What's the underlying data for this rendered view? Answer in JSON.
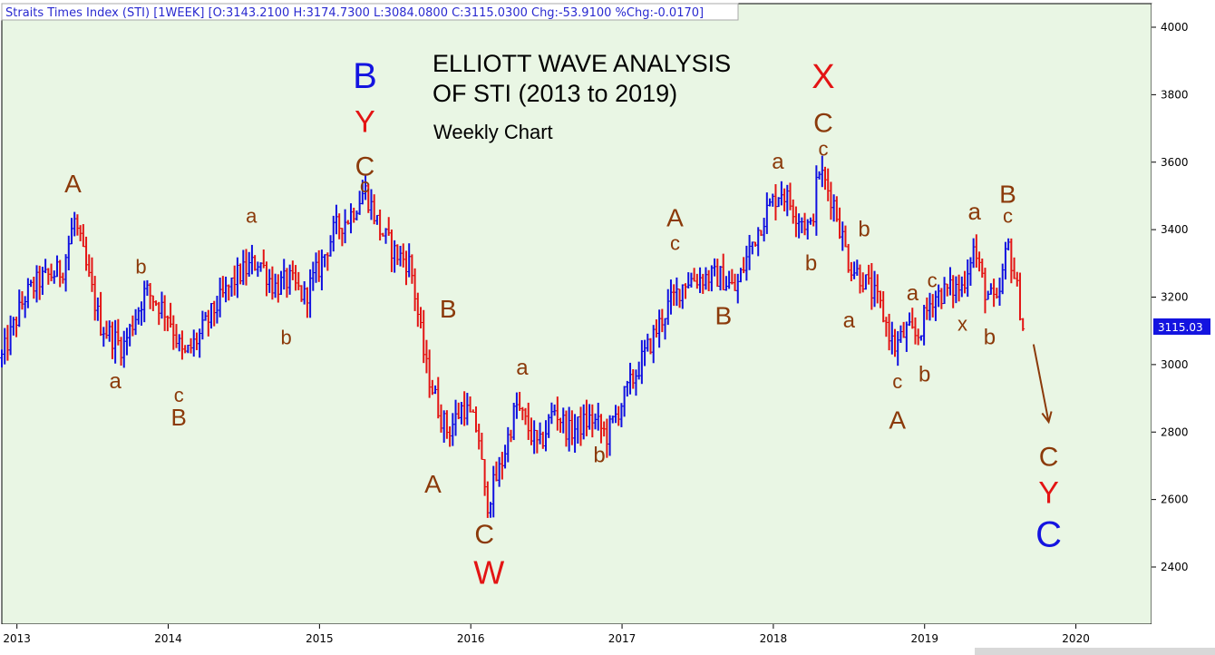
{
  "header": {
    "text": "Straits Times Index (STI) [1WEEK] [O:3143.2100 H:3174.7300 L:3084.0800 C:3115.0300 Chg:-53.9100 %Chg:-0.0170]"
  },
  "title_line1": "ELLIOTT WAVE ANALYSIS",
  "title_line2": "OF STI (2013 to 2019)",
  "subtitle": "Weekly Chart",
  "last_price": "3115.03",
  "colors": {
    "background": "#e9f6e4",
    "up_bar": "#1010e0",
    "down_bar": "#e31414",
    "label_brown": "#8b3a0a",
    "label_red": "#e31414",
    "label_blue": "#1414e0",
    "price_box": "#1414e0"
  },
  "chart_data": {
    "type": "ohlc",
    "interval": "1WEEK",
    "ylim": [
      2250,
      4080
    ],
    "xlim": [
      2012.9,
      2020.5
    ],
    "y_ticks": [
      2400,
      2600,
      2800,
      3000,
      3200,
      3400,
      3600,
      3800,
      4000
    ],
    "x_ticks": [
      2013,
      2014,
      2015,
      2016,
      2017,
      2018,
      2019,
      2020
    ],
    "grid": false,
    "legend": "none",
    "price_path": [
      [
        2012.9,
        3020
      ],
      [
        2013.05,
        3200
      ],
      [
        2013.15,
        3250
      ],
      [
        2013.3,
        3280
      ],
      [
        2013.38,
        3430
      ],
      [
        2013.45,
        3300
      ],
      [
        2013.55,
        3120
      ],
      [
        2013.7,
        3050
      ],
      [
        2013.85,
        3220
      ],
      [
        2014.0,
        3150
      ],
      [
        2014.1,
        3020
      ],
      [
        2014.2,
        3080
      ],
      [
        2014.3,
        3160
      ],
      [
        2014.45,
        3260
      ],
      [
        2014.6,
        3310
      ],
      [
        2014.7,
        3230
      ],
      [
        2014.8,
        3250
      ],
      [
        2014.9,
        3200
      ],
      [
        2015.0,
        3290
      ],
      [
        2015.1,
        3400
      ],
      [
        2015.2,
        3440
      ],
      [
        2015.3,
        3520
      ],
      [
        2015.4,
        3400
      ],
      [
        2015.5,
        3330
      ],
      [
        2015.6,
        3300
      ],
      [
        2015.7,
        3000
      ],
      [
        2015.8,
        2850
      ],
      [
        2015.85,
        2800
      ],
      [
        2015.95,
        2880
      ],
      [
        2016.05,
        2800
      ],
      [
        2016.1,
        2580
      ],
      [
        2016.2,
        2700
      ],
      [
        2016.3,
        2880
      ],
      [
        2016.45,
        2750
      ],
      [
        2016.55,
        2870
      ],
      [
        2016.65,
        2800
      ],
      [
        2016.8,
        2840
      ],
      [
        2016.9,
        2790
      ],
      [
        2017.0,
        2890
      ],
      [
        2017.15,
        3030
      ],
      [
        2017.3,
        3170
      ],
      [
        2017.42,
        3250
      ],
      [
        2017.55,
        3260
      ],
      [
        2017.65,
        3260
      ],
      [
        2017.75,
        3220
      ],
      [
        2017.85,
        3350
      ],
      [
        2017.95,
        3450
      ],
      [
        2018.05,
        3520
      ],
      [
        2018.15,
        3450
      ],
      [
        2018.25,
        3400
      ],
      [
        2018.3,
        3580
      ],
      [
        2018.4,
        3480
      ],
      [
        2018.5,
        3300
      ],
      [
        2018.6,
        3250
      ],
      [
        2018.7,
        3180
      ],
      [
        2018.8,
        3050
      ],
      [
        2018.88,
        3100
      ],
      [
        2018.95,
        3080
      ],
      [
        2019.05,
        3200
      ],
      [
        2019.15,
        3220
      ],
      [
        2019.25,
        3230
      ],
      [
        2019.32,
        3350
      ],
      [
        2019.4,
        3220
      ],
      [
        2019.48,
        3170
      ],
      [
        2019.55,
        3360
      ],
      [
        2019.62,
        3200
      ],
      [
        2019.65,
        3115
      ]
    ],
    "last": {
      "open": 3143.21,
      "high": 3174.73,
      "low": 3084.08,
      "close": 3115.03,
      "change": -53.91,
      "pct_change": -0.017
    },
    "projection_arrow": {
      "from": [
        2019.72,
        3060
      ],
      "to": [
        2019.82,
        2830
      ]
    }
  },
  "wave_labels": [
    {
      "text": "A",
      "x": 2013.37,
      "y": 3510,
      "size": 28,
      "color": "brown"
    },
    {
      "text": "a",
      "x": 2013.65,
      "y": 2930,
      "size": 24,
      "color": "brown"
    },
    {
      "text": "b",
      "x": 2013.82,
      "y": 3270,
      "size": 22,
      "color": "brown"
    },
    {
      "text": "c",
      "x": 2014.07,
      "y": 2890,
      "size": 22,
      "color": "brown"
    },
    {
      "text": "B",
      "x": 2014.07,
      "y": 2820,
      "size": 26,
      "color": "brown"
    },
    {
      "text": "a",
      "x": 2014.55,
      "y": 3420,
      "size": 22,
      "color": "brown"
    },
    {
      "text": "b",
      "x": 2014.78,
      "y": 3060,
      "size": 22,
      "color": "brown"
    },
    {
      "text": "B",
      "x": 2015.3,
      "y": 3820,
      "size": 40,
      "color": "blue"
    },
    {
      "text": "Y",
      "x": 2015.3,
      "y": 3690,
      "size": 34,
      "color": "red"
    },
    {
      "text": "C",
      "x": 2015.3,
      "y": 3560,
      "size": 30,
      "color": "brown"
    },
    {
      "text": "c",
      "x": 2015.3,
      "y": 3510,
      "size": 22,
      "color": "brown"
    },
    {
      "text": "A",
      "x": 2015.75,
      "y": 2620,
      "size": 28,
      "color": "brown"
    },
    {
      "text": "B",
      "x": 2015.85,
      "y": 3140,
      "size": 28,
      "color": "brown"
    },
    {
      "text": "C",
      "x": 2016.09,
      "y": 2470,
      "size": 30,
      "color": "brown"
    },
    {
      "text": "W",
      "x": 2016.12,
      "y": 2350,
      "size": 36,
      "color": "red"
    },
    {
      "text": "a",
      "x": 2016.34,
      "y": 2970,
      "size": 24,
      "color": "brown"
    },
    {
      "text": "b",
      "x": 2016.85,
      "y": 2710,
      "size": 24,
      "color": "brown"
    },
    {
      "text": "A",
      "x": 2017.35,
      "y": 3410,
      "size": 28,
      "color": "brown"
    },
    {
      "text": "c",
      "x": 2017.35,
      "y": 3340,
      "size": 22,
      "color": "brown"
    },
    {
      "text": "B",
      "x": 2017.67,
      "y": 3120,
      "size": 28,
      "color": "brown"
    },
    {
      "text": "a",
      "x": 2018.03,
      "y": 3580,
      "size": 24,
      "color": "brown"
    },
    {
      "text": "X",
      "x": 2018.33,
      "y": 3820,
      "size": 38,
      "color": "red"
    },
    {
      "text": "C",
      "x": 2018.33,
      "y": 3690,
      "size": 30,
      "color": "brown"
    },
    {
      "text": "c",
      "x": 2018.33,
      "y": 3620,
      "size": 22,
      "color": "brown"
    },
    {
      "text": "b",
      "x": 2018.25,
      "y": 3280,
      "size": 24,
      "color": "brown"
    },
    {
      "text": "a",
      "x": 2018.5,
      "y": 3110,
      "size": 24,
      "color": "brown"
    },
    {
      "text": "b",
      "x": 2018.6,
      "y": 3380,
      "size": 24,
      "color": "brown"
    },
    {
      "text": "a",
      "x": 2018.92,
      "y": 3190,
      "size": 24,
      "color": "brown"
    },
    {
      "text": "c",
      "x": 2018.82,
      "y": 2930,
      "size": 22,
      "color": "brown"
    },
    {
      "text": "A",
      "x": 2018.82,
      "y": 2810,
      "size": 28,
      "color": "brown"
    },
    {
      "text": "b",
      "x": 2019.0,
      "y": 2950,
      "size": 24,
      "color": "brown"
    },
    {
      "text": "c",
      "x": 2019.05,
      "y": 3230,
      "size": 22,
      "color": "brown"
    },
    {
      "text": "x",
      "x": 2019.25,
      "y": 3100,
      "size": 22,
      "color": "brown"
    },
    {
      "text": "a",
      "x": 2019.33,
      "y": 3430,
      "size": 26,
      "color": "brown"
    },
    {
      "text": "b",
      "x": 2019.43,
      "y": 3060,
      "size": 24,
      "color": "brown"
    },
    {
      "text": "B",
      "x": 2019.55,
      "y": 3480,
      "size": 28,
      "color": "brown"
    },
    {
      "text": "c",
      "x": 2019.55,
      "y": 3420,
      "size": 22,
      "color": "brown"
    },
    {
      "text": "C",
      "x": 2019.82,
      "y": 2700,
      "size": 30,
      "color": "brown"
    },
    {
      "text": "Y",
      "x": 2019.82,
      "y": 2590,
      "size": 34,
      "color": "red"
    },
    {
      "text": "C",
      "x": 2019.82,
      "y": 2460,
      "size": 40,
      "color": "blue"
    }
  ]
}
